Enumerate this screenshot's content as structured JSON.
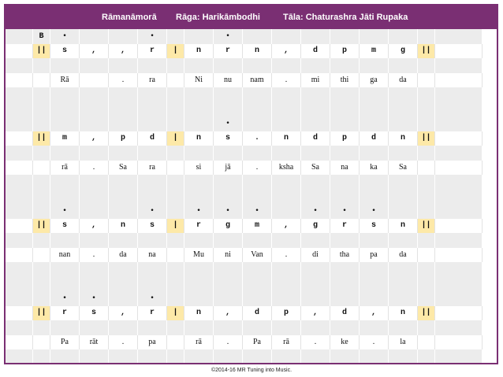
{
  "header": {
    "composition": "Rāmanāmorā",
    "raga": "Rāga:  Harikāmbodhi",
    "tala": "Tāla:  Chaturashra Jāti Rupaka"
  },
  "colors": {
    "header_bg": "#7a2f73",
    "bar_highlight": "#fde9a8",
    "grey_row": "#ececec"
  },
  "rows": [
    {
      "kind": "octave",
      "cells": [
        "",
        "B",
        "•",
        "",
        "",
        "•",
        "",
        "",
        "•",
        "",
        "",
        "",
        "",
        "",
        "",
        "",
        ""
      ]
    },
    {
      "kind": "swara",
      "cells": [
        "",
        "||",
        "s",
        ",",
        ",",
        "r",
        "|",
        "n",
        "r",
        "n",
        ",",
        "d",
        "p",
        "m",
        "g",
        "||",
        ""
      ]
    },
    {
      "kind": "blank",
      "cells": []
    },
    {
      "kind": "sahitya",
      "cells": [
        "",
        "",
        "Rā",
        "",
        ".",
        "ra",
        "",
        "Ni",
        "nu",
        "nam",
        ".",
        "mi",
        "thi",
        "ga",
        "da",
        "",
        ""
      ]
    },
    {
      "kind": "blank",
      "cells": []
    },
    {
      "kind": "blank",
      "cells": []
    },
    {
      "kind": "octave",
      "cells": [
        "",
        "",
        "",
        "",
        "",
        "",
        "",
        "",
        "•",
        "",
        "",
        "",
        "",
        "",
        "",
        "",
        ""
      ]
    },
    {
      "kind": "swara",
      "cells": [
        "",
        "||",
        "m",
        ",",
        "p",
        "d",
        "|",
        "n",
        "s",
        ".",
        "n",
        "d",
        "p",
        "d",
        "n",
        "||",
        ""
      ]
    },
    {
      "kind": "blank",
      "cells": []
    },
    {
      "kind": "sahitya",
      "cells": [
        "",
        "",
        "rā",
        ".",
        "Sa",
        "ra",
        "",
        "si",
        "jā",
        ".",
        "ksha",
        "Sa",
        "na",
        "ka",
        "Sa",
        "",
        ""
      ]
    },
    {
      "kind": "blank",
      "cells": []
    },
    {
      "kind": "blank",
      "cells": []
    },
    {
      "kind": "octave",
      "cells": [
        "",
        "",
        "•",
        "",
        "",
        "•",
        "",
        "•",
        "•",
        "•",
        "",
        "•",
        "•",
        "•",
        "",
        "",
        ""
      ]
    },
    {
      "kind": "swara",
      "cells": [
        "",
        "||",
        "s",
        ",",
        "n",
        "s",
        "|",
        "r",
        "g",
        "m",
        ",",
        "g",
        "r",
        "s",
        "n",
        "||",
        ""
      ]
    },
    {
      "kind": "blank",
      "cells": []
    },
    {
      "kind": "sahitya",
      "cells": [
        "",
        "",
        "nan",
        ".",
        "da",
        "na",
        "",
        "Mu",
        "ni",
        "Van",
        ".",
        "di",
        "tha",
        "pa",
        "da",
        "",
        ""
      ]
    },
    {
      "kind": "blank",
      "cells": []
    },
    {
      "kind": "blank",
      "cells": []
    },
    {
      "kind": "octave",
      "cells": [
        "",
        "",
        "•",
        "•",
        "",
        "•",
        "",
        "",
        "",
        "",
        "",
        "",
        "",
        "",
        "",
        "",
        ""
      ]
    },
    {
      "kind": "swara",
      "cells": [
        "",
        "||",
        "r",
        "s",
        ",",
        "r",
        "|",
        "n",
        ",",
        "d",
        "p",
        ",",
        "d",
        ",",
        "n",
        "||",
        ""
      ]
    },
    {
      "kind": "blank",
      "cells": []
    },
    {
      "kind": "sahitya",
      "cells": [
        "",
        "",
        "Pa",
        "rāt",
        ".",
        "pa",
        "",
        "rā",
        ".",
        "Pa",
        "rā",
        ".",
        "ke",
        ".",
        "la",
        "",
        ""
      ]
    },
    {
      "kind": "blank",
      "cells": []
    }
  ],
  "footer": "©2014-16 MR Tuning into Music."
}
